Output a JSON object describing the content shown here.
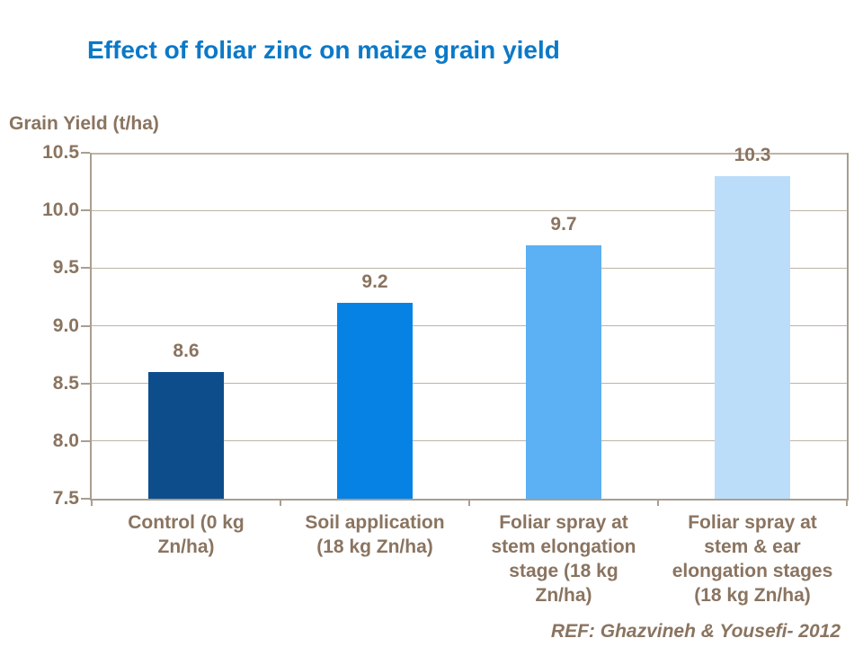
{
  "title": "Effect of foliar zinc on maize grain yield",
  "source": "REF: Ghazvineh & Yousefi- 2012",
  "colors": {
    "title_blue": "#0b79c7",
    "text_brown": "#8a7460",
    "gridline": "#bfb4a6",
    "axis_line": "#a99e90"
  },
  "chart_data": {
    "type": "bar",
    "title": "Effect of foliar zinc on maize grain yield",
    "xlabel": "",
    "ylabel": "Grain Yield (t/ha)",
    "categories": [
      "Control (0 kg Zn/ha)",
      "Soil application (18 kg Zn/ha)",
      "Foliar spray at stem elongation stage (18 kg Zn/ha)",
      "Foliar spray at stem & ear elongation stages (18 kg Zn/ha)"
    ],
    "category_label_lines": [
      [
        "Control (0 kg",
        "Zn/ha)"
      ],
      [
        "Soil application",
        "(18 kg Zn/ha)"
      ],
      [
        "Foliar spray at",
        "stem elongation",
        "stage (18 kg",
        "Zn/ha)"
      ],
      [
        "Foliar spray at",
        "stem & ear",
        "elongation stages",
        "(18 kg Zn/ha)"
      ]
    ],
    "values": [
      8.6,
      9.2,
      9.7,
      10.3
    ],
    "value_labels": [
      "8.6",
      "9.2",
      "9.7",
      "10.3"
    ],
    "bar_colors": [
      "#0e4d8c",
      "#0682e4",
      "#5cb0f4",
      "#bcddf9"
    ],
    "ylim": [
      7.5,
      10.5
    ],
    "ytick_step": 0.5,
    "ytick_labels": [
      "7.5",
      "8.0",
      "8.5",
      "9.0",
      "9.5",
      "10.0",
      "10.5"
    ],
    "grid": true,
    "legend": false,
    "source": "REF: Ghazvineh & Yousefi- 2012"
  }
}
